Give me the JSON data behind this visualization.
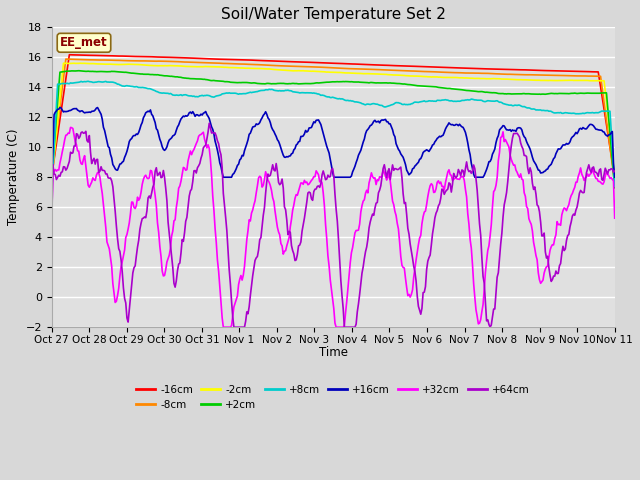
{
  "title": "Soil/Water Temperature Set 2",
  "ylabel": "Temperature (C)",
  "xlabel": "Time",
  "annotation": "EE_met",
  "background_color": "#d8d8d8",
  "plot_bg_color": "#e0e0e0",
  "ylim": [
    -2,
    18
  ],
  "yticks": [
    -2,
    0,
    2,
    4,
    6,
    8,
    10,
    12,
    14,
    16,
    18
  ],
  "x_labels": [
    "Oct 27",
    "Oct 28",
    "Oct 29",
    "Oct 30",
    "Oct 31",
    "Nov 1",
    "Nov 2",
    "Nov 3",
    "Nov 4",
    "Nov 5",
    "Nov 6",
    "Nov 7",
    "Nov 8",
    "Nov 9",
    "Nov 10",
    "Nov 11"
  ],
  "series_colors": {
    "-16cm": "#ff0000",
    "-8cm": "#ff8800",
    "-2cm": "#ffff00",
    "+2cm": "#00cc00",
    "+8cm": "#00cccc",
    "+16cm": "#0000bb",
    "+32cm": "#ff00ff",
    "+64cm": "#aa00cc"
  },
  "series_lw": 1.2
}
